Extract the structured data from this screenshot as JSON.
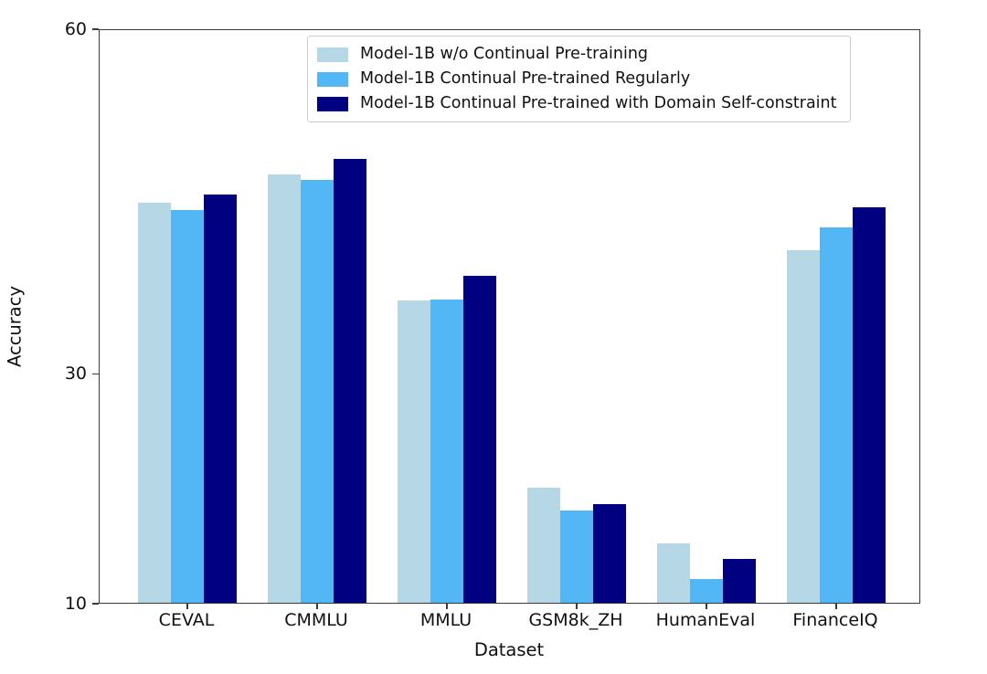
{
  "figure": {
    "background_color": "#ffffff",
    "axis_color": "#3a3a3a",
    "text_color": "#111111"
  },
  "chart_data": {
    "type": "bar",
    "title": "",
    "xlabel": "Dataset",
    "ylabel": "Accuracy",
    "categories": [
      "CEVAL",
      "CMMLU",
      "MMLU",
      "GSM8k_ZH",
      "HumanEval",
      "FinanceIQ"
    ],
    "series": [
      {
        "name": "Model-1B w/o Continual Pre-training",
        "color": "#b6d8e6",
        "values": [
          44.8,
          47.3,
          36.3,
          20.0,
          15.2,
          40.7
        ]
      },
      {
        "name": "Model-1B Continual Pre-trained Regularly",
        "color": "#54b7f5",
        "values": [
          44.2,
          46.8,
          36.4,
          18.0,
          12.1,
          42.7
        ]
      },
      {
        "name": "Model-1B Continual Pre-trained with Domain Self-constraint",
        "color": "#000080",
        "values": [
          45.5,
          48.6,
          38.5,
          18.6,
          13.8,
          44.4
        ]
      }
    ],
    "ylim": [
      10,
      60
    ],
    "yticks": [
      10,
      30,
      60
    ],
    "grid": false,
    "legend_position": "upper center"
  }
}
